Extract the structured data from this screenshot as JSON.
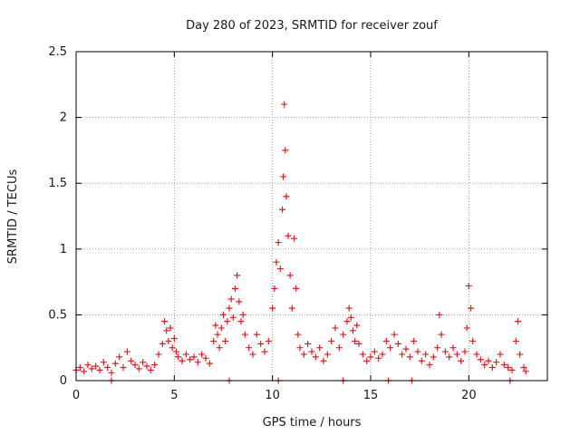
{
  "chart_data": {
    "type": "scatter",
    "title": "Day 280 of 2023, SRMTID for receiver zouf",
    "xlabel": "GPS time / hours",
    "ylabel": "SRMTID / TECUs",
    "xlim": [
      0,
      24
    ],
    "ylim": [
      0,
      2.5
    ],
    "x_ticks": [
      0,
      5,
      10,
      15,
      20
    ],
    "y_ticks": [
      0,
      0.5,
      1,
      1.5,
      2,
      2.5
    ],
    "x_tick_labels": [
      "0",
      "5",
      "10",
      "15",
      "20"
    ],
    "y_tick_labels": [
      "0",
      "0.5",
      "1",
      "1.5",
      "2",
      "2.5"
    ],
    "grid": true,
    "marker": "plus",
    "series": [
      {
        "name": "SRMTID",
        "color": "#e31a1c",
        "x": [
          0.0,
          0.2,
          0.4,
          0.6,
          0.8,
          1.0,
          1.2,
          1.4,
          1.6,
          1.8,
          2.0,
          2.2,
          2.4,
          2.6,
          2.8,
          3.0,
          3.2,
          3.4,
          3.6,
          3.8,
          4.0,
          4.2,
          4.4,
          4.5,
          4.6,
          4.7,
          4.8,
          4.9,
          5.0,
          5.1,
          5.2,
          5.4,
          5.6,
          5.8,
          6.0,
          6.2,
          6.4,
          6.6,
          6.8,
          7.0,
          7.1,
          7.2,
          7.3,
          7.4,
          7.5,
          7.6,
          7.7,
          7.8,
          7.9,
          8.0,
          8.1,
          8.2,
          8.3,
          8.4,
          8.5,
          8.6,
          8.8,
          9.0,
          9.2,
          9.4,
          9.6,
          9.8,
          10.0,
          10.1,
          10.2,
          10.3,
          10.4,
          10.5,
          10.55,
          10.6,
          10.65,
          10.7,
          10.8,
          10.9,
          11.0,
          11.1,
          11.2,
          11.3,
          11.4,
          11.6,
          11.8,
          12.0,
          12.2,
          12.4,
          12.6,
          12.8,
          13.0,
          13.2,
          13.4,
          13.6,
          13.8,
          13.9,
          14.0,
          14.1,
          14.2,
          14.3,
          14.4,
          14.6,
          14.8,
          15.0,
          15.2,
          15.4,
          15.6,
          15.8,
          16.0,
          16.2,
          16.4,
          16.6,
          16.8,
          17.0,
          17.2,
          17.4,
          17.6,
          17.8,
          18.0,
          18.2,
          18.4,
          18.5,
          18.6,
          18.8,
          19.0,
          19.2,
          19.4,
          19.6,
          19.8,
          19.9,
          20.0,
          20.1,
          20.2,
          20.4,
          20.6,
          20.8,
          21.0,
          21.2,
          21.4,
          21.6,
          21.8,
          22.0,
          22.2,
          22.4,
          22.5,
          22.6,
          22.8,
          22.9
        ],
        "y": [
          0.08,
          0.1,
          0.07,
          0.12,
          0.09,
          0.11,
          0.08,
          0.14,
          0.1,
          0.06,
          0.13,
          0.18,
          0.1,
          0.22,
          0.15,
          0.12,
          0.09,
          0.14,
          0.11,
          0.08,
          0.12,
          0.2,
          0.28,
          0.45,
          0.38,
          0.3,
          0.4,
          0.25,
          0.32,
          0.22,
          0.18,
          0.15,
          0.2,
          0.16,
          0.18,
          0.14,
          0.2,
          0.17,
          0.13,
          0.3,
          0.42,
          0.35,
          0.25,
          0.4,
          0.5,
          0.3,
          0.45,
          0.55,
          0.62,
          0.48,
          0.7,
          0.8,
          0.6,
          0.45,
          0.5,
          0.35,
          0.25,
          0.2,
          0.35,
          0.28,
          0.22,
          0.3,
          0.55,
          0.7,
          0.9,
          1.05,
          0.85,
          1.3,
          1.55,
          2.1,
          1.75,
          1.4,
          1.1,
          0.8,
          0.55,
          1.08,
          0.7,
          0.35,
          0.25,
          0.2,
          0.28,
          0.22,
          0.18,
          0.25,
          0.15,
          0.2,
          0.3,
          0.4,
          0.25,
          0.35,
          0.45,
          0.55,
          0.48,
          0.38,
          0.3,
          0.42,
          0.28,
          0.2,
          0.15,
          0.18,
          0.22,
          0.17,
          0.2,
          0.3,
          0.25,
          0.35,
          0.28,
          0.2,
          0.24,
          0.18,
          0.3,
          0.22,
          0.15,
          0.2,
          0.12,
          0.18,
          0.25,
          0.5,
          0.35,
          0.22,
          0.18,
          0.25,
          0.2,
          0.15,
          0.22,
          0.4,
          0.72,
          0.55,
          0.3,
          0.2,
          0.16,
          0.12,
          0.15,
          0.1,
          0.14,
          0.2,
          0.12,
          0.1,
          0.08,
          0.3,
          0.45,
          0.2,
          0.1,
          0.07
        ]
      }
    ],
    "baseline_markers": [
      {
        "x": 1.8,
        "y": 0.0
      },
      {
        "x": 7.8,
        "y": 0.0
      },
      {
        "x": 10.3,
        "y": 0.0
      },
      {
        "x": 13.6,
        "y": 0.0
      },
      {
        "x": 15.9,
        "y": 0.0
      },
      {
        "x": 17.1,
        "y": 0.0
      },
      {
        "x": 22.1,
        "y": 0.0
      }
    ]
  }
}
